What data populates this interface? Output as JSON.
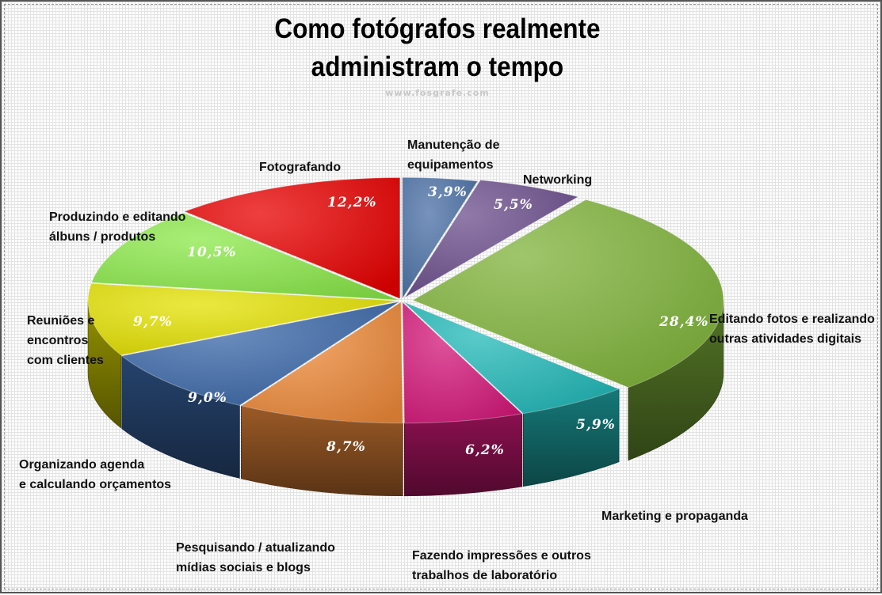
{
  "chart_data": {
    "type": "pie",
    "title_lines": [
      "Como fotógrafos realmente",
      "administram o tempo"
    ],
    "subtitle": "www.fosgrafe.com",
    "value_labels": [
      "3,9%",
      "5,5%",
      "28,4%",
      "5,9%",
      "6,2%",
      "8,7%",
      "9,0%",
      "9,7%",
      "10,5%",
      "12,2%"
    ],
    "slices": [
      {
        "label_lines": [
          "Manutenção de",
          "equipamentos"
        ],
        "value": 3.9,
        "color": "#4a6fa5"
      },
      {
        "label_lines": [
          "Networking"
        ],
        "value": 5.5,
        "color": "#6b4d8c"
      },
      {
        "label_lines": [
          "Editando fotos e realizando",
          "outras atividades digitais"
        ],
        "value": 28.4,
        "color": "#7fb33a"
      },
      {
        "label_lines": [
          "Marketing e propaganda"
        ],
        "value": 5.9,
        "color": "#22b8b8"
      },
      {
        "label_lines": [
          "Fazendo impressões e outros",
          "trabalhos de laboratório"
        ],
        "value": 6.2,
        "color": "#d4187a"
      },
      {
        "label_lines": [
          "Pesquisando / atualizando",
          "mídias sociais e blogs"
        ],
        "value": 8.7,
        "color": "#ee8a3a"
      },
      {
        "label_lines": [
          "Organizando agenda",
          "e calculando orçamentos"
        ],
        "value": 9.0,
        "color": "#3a67a8"
      },
      {
        "label_lines": [
          "Reuniões e",
          "encontros",
          "com clientes"
        ],
        "value": 9.7,
        "color": "#e3e000"
      },
      {
        "label_lines": [
          "Produzindo e editando",
          "álbuns / produtos"
        ],
        "value": 10.5,
        "color": "#8be84a"
      },
      {
        "label_lines": [
          "Fotografando"
        ],
        "value": 12.2,
        "color": "#e80000"
      }
    ]
  }
}
